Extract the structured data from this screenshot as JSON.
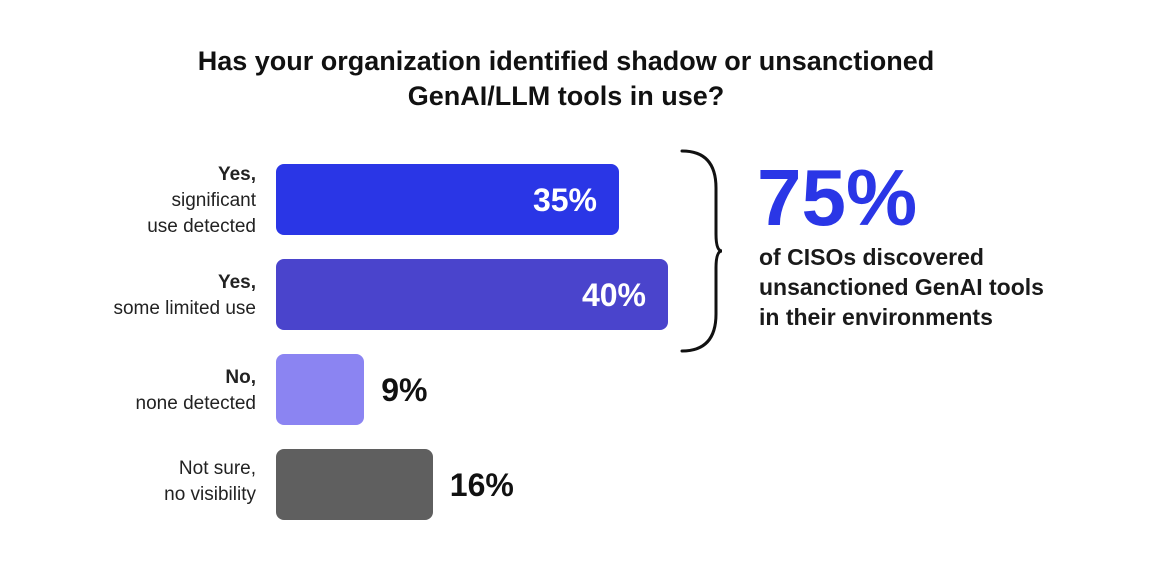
{
  "title": {
    "line1": "Has your organization identified shadow or unsanctioned",
    "line2": "GenAI/LLM tools in use?"
  },
  "chart_data": {
    "type": "bar",
    "orientation": "horizontal",
    "title": "Has your organization identified shadow or unsanctioned GenAI/LLM tools in use?",
    "categories": [
      {
        "strong": "Yes,",
        "rest": [
          "significant",
          "use detected"
        ]
      },
      {
        "strong": "Yes,",
        "rest": [
          "some limited use"
        ]
      },
      {
        "strong": "No,",
        "rest": [
          "none detected"
        ]
      },
      {
        "strong": "",
        "rest": [
          "Not sure,",
          "no visibility"
        ]
      }
    ],
    "values": [
      35,
      40,
      9,
      16
    ],
    "value_labels": [
      "35%",
      "40%",
      "9%",
      "16%"
    ],
    "colors": [
      "#2a36e6",
      "#4a44cc",
      "#8b84f2",
      "#5f5f5f"
    ],
    "value_label_inside": [
      true,
      true,
      false,
      false
    ],
    "xlim": [
      0,
      40
    ],
    "grid": false
  },
  "callout": {
    "big": "75%",
    "big_color": "#2a36e6",
    "lines": [
      "of CISOs discovered",
      "unsanctioned GenAI tools",
      "in their environments"
    ]
  }
}
